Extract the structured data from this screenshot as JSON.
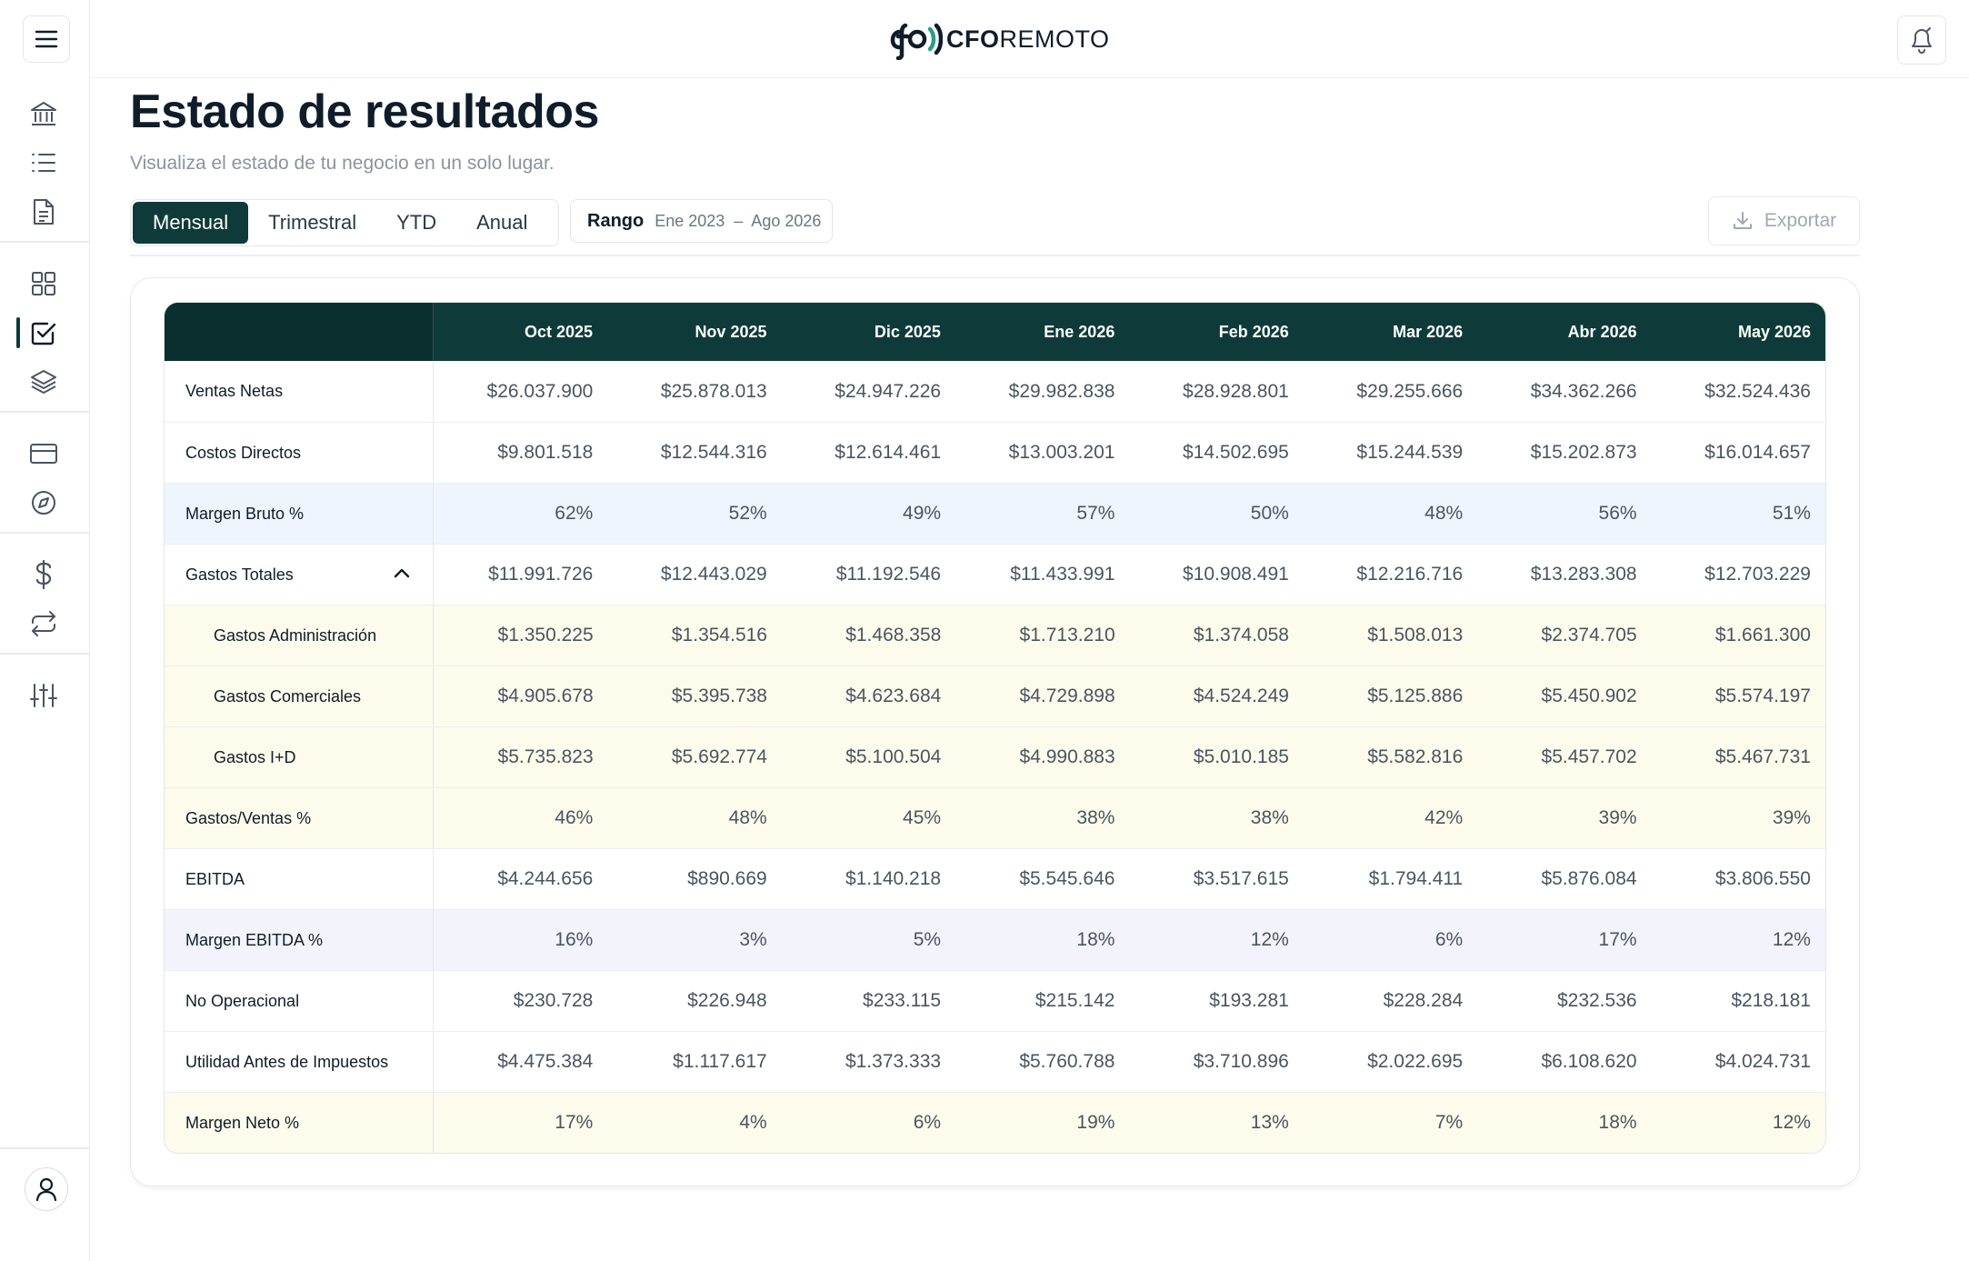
{
  "app": {
    "logo_mark": "cfo",
    "logo_bold": "CFO",
    "logo_light": "REMOTO"
  },
  "sidebar": {
    "icons": [
      "menu-icon",
      "bank-icon",
      "list-icon",
      "document-icon",
      "grid-icon",
      "checkbox-icon",
      "layers-icon",
      "credit-card-icon",
      "compass-icon",
      "dollar-icon",
      "repeat-icon",
      "sliders-icon",
      "user-icon"
    ],
    "active_item": "checkbox-icon"
  },
  "page": {
    "title": "Estado de resultados",
    "subtitle": "Visualiza el estado de tu negocio en un solo lugar."
  },
  "controls": {
    "periods": [
      "Mensual",
      "Trimestral",
      "YTD",
      "Anual"
    ],
    "active_period": "Mensual",
    "range_label": "Rango",
    "range_value": "Ene 2023  –  Ago 2026",
    "export_label": "Exportar"
  },
  "table": {
    "columns": [
      "Oct 2025",
      "Nov 2025",
      "Dic 2025",
      "Ene 2026",
      "Feb 2026",
      "Mar 2026",
      "Abr 2026",
      "May 2026"
    ],
    "rows": [
      {
        "label": "Ventas Netas",
        "tone": "white",
        "values": [
          "$26.037.900",
          "$25.878.013",
          "$24.947.226",
          "$29.982.838",
          "$28.928.801",
          "$29.255.666",
          "$34.362.266",
          "$32.524.436"
        ]
      },
      {
        "label": "Costos Directos",
        "tone": "white",
        "values": [
          "$9.801.518",
          "$12.544.316",
          "$12.614.461",
          "$13.003.201",
          "$14.502.695",
          "$15.244.539",
          "$15.202.873",
          "$16.014.657"
        ]
      },
      {
        "label": "Margen Bruto %",
        "tone": "blue",
        "values": [
          "62%",
          "52%",
          "49%",
          "57%",
          "50%",
          "48%",
          "56%",
          "51%"
        ]
      },
      {
        "label": "Gastos Totales",
        "tone": "white",
        "expandable": true,
        "values": [
          "$11.991.726",
          "$12.443.029",
          "$11.192.546",
          "$11.433.991",
          "$10.908.491",
          "$12.216.716",
          "$13.283.308",
          "$12.703.229"
        ]
      },
      {
        "label": "Gastos Administración",
        "tone": "yellow",
        "sub": true,
        "values": [
          "$1.350.225",
          "$1.354.516",
          "$1.468.358",
          "$1.713.210",
          "$1.374.058",
          "$1.508.013",
          "$2.374.705",
          "$1.661.300"
        ]
      },
      {
        "label": "Gastos Comerciales",
        "tone": "yellow",
        "sub": true,
        "values": [
          "$4.905.678",
          "$5.395.738",
          "$4.623.684",
          "$4.729.898",
          "$4.524.249",
          "$5.125.886",
          "$5.450.902",
          "$5.574.197"
        ]
      },
      {
        "label": "Gastos I+D",
        "tone": "yellow",
        "sub": true,
        "values": [
          "$5.735.823",
          "$5.692.774",
          "$5.100.504",
          "$4.990.883",
          "$5.010.185",
          "$5.582.816",
          "$5.457.702",
          "$5.467.731"
        ]
      },
      {
        "label": "Gastos/Ventas %",
        "tone": "yellow",
        "values": [
          "46%",
          "48%",
          "45%",
          "38%",
          "38%",
          "42%",
          "39%",
          "39%"
        ]
      },
      {
        "label": "EBITDA",
        "tone": "white",
        "values": [
          "$4.244.656",
          "$890.669",
          "$1.140.218",
          "$5.545.646",
          "$3.517.615",
          "$1.794.411",
          "$5.876.084",
          "$3.806.550"
        ]
      },
      {
        "label": "Margen EBITDA %",
        "tone": "purple",
        "values": [
          "16%",
          "3%",
          "5%",
          "18%",
          "12%",
          "6%",
          "17%",
          "12%"
        ]
      },
      {
        "label": "No Operacional",
        "tone": "white",
        "values": [
          "$230.728",
          "$226.948",
          "$233.115",
          "$215.142",
          "$193.281",
          "$228.284",
          "$232.536",
          "$218.181"
        ]
      },
      {
        "label": "Utilidad Antes de Impuestos",
        "tone": "white",
        "values": [
          "$4.475.384",
          "$1.117.617",
          "$1.373.333",
          "$5.760.788",
          "$3.710.896",
          "$2.022.695",
          "$6.108.620",
          "$4.024.731"
        ]
      },
      {
        "label": "Margen Neto %",
        "tone": "yellow",
        "values": [
          "17%",
          "4%",
          "6%",
          "19%",
          "13%",
          "7%",
          "18%",
          "12%"
        ]
      }
    ]
  }
}
